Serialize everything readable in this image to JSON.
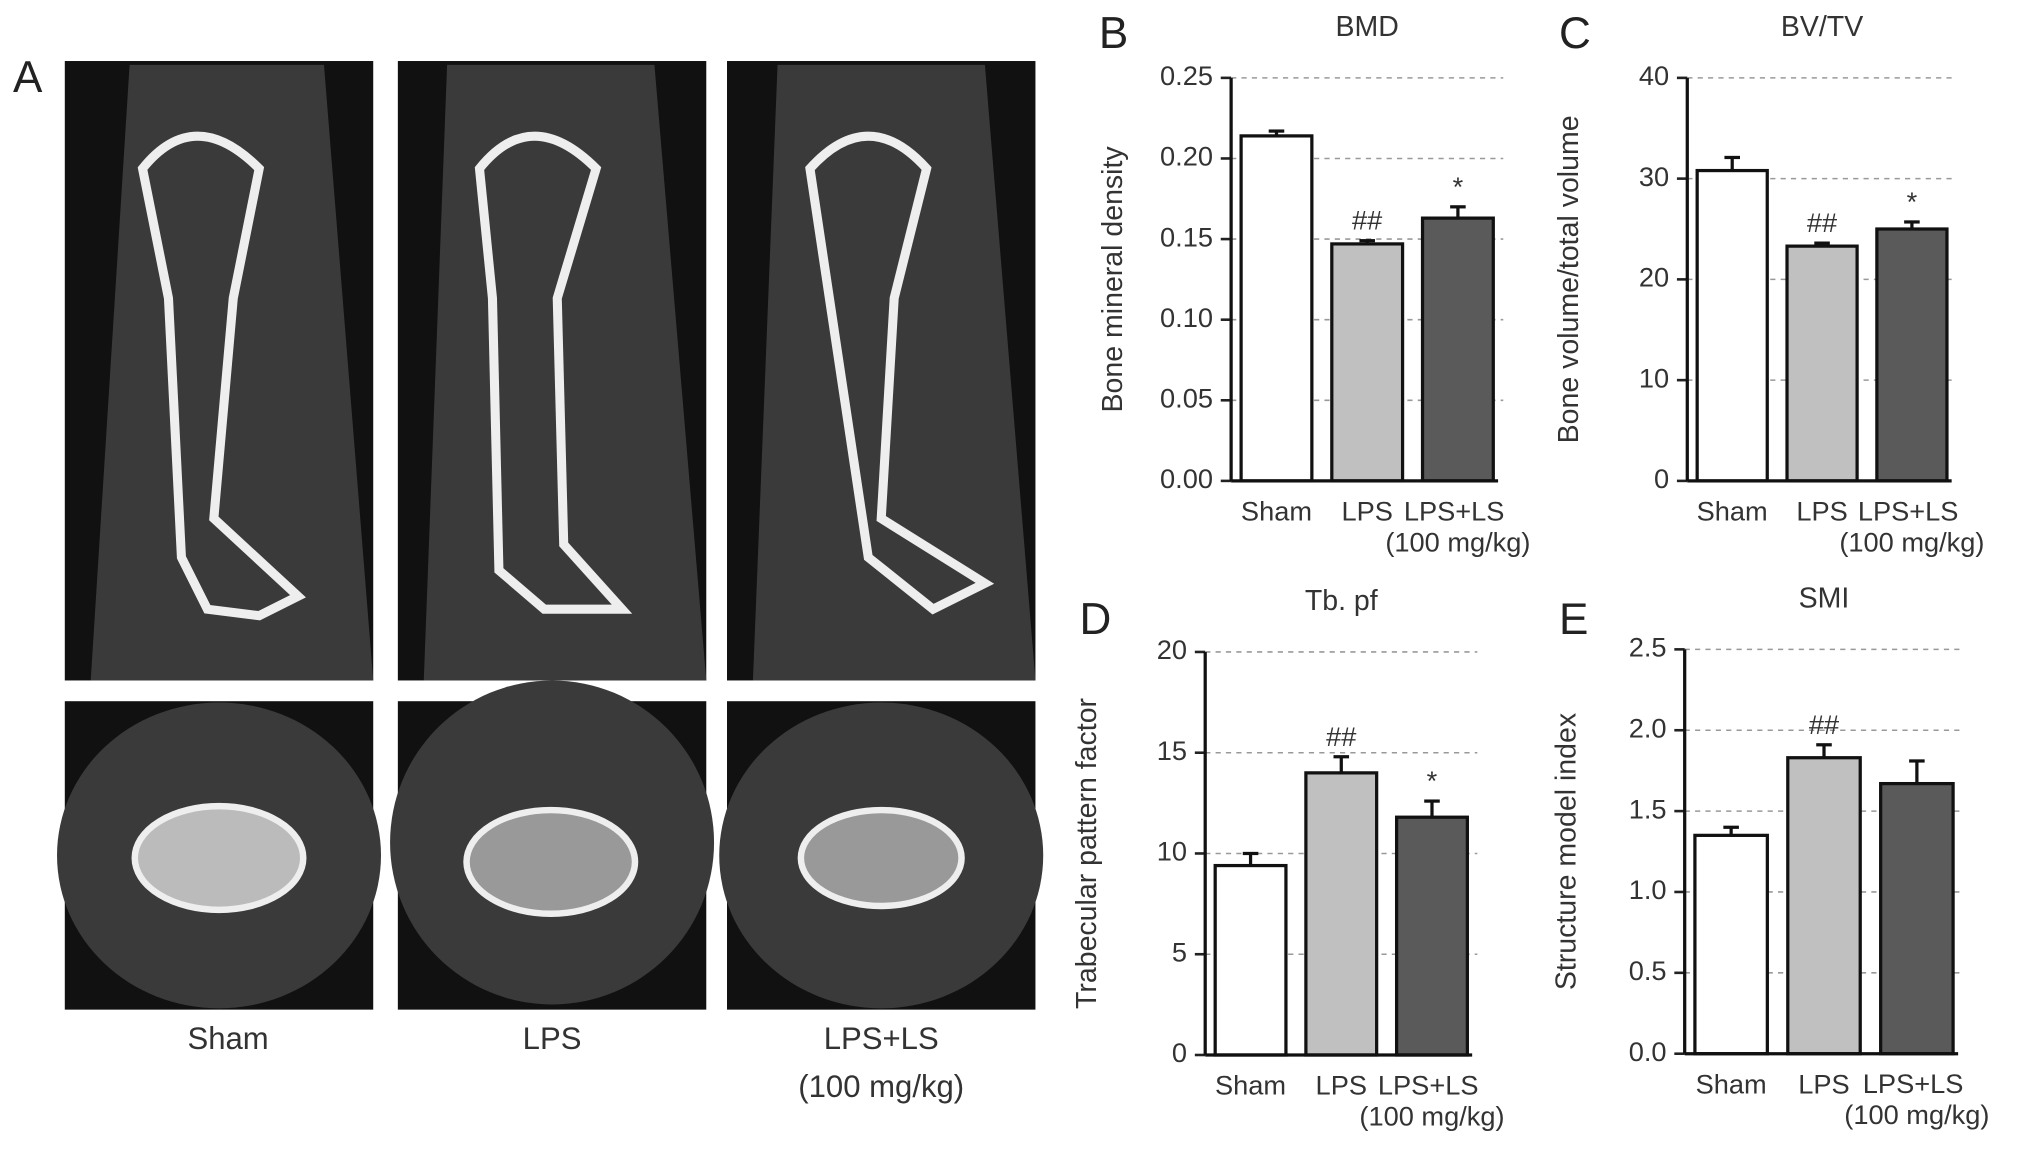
{
  "panel_a": {
    "label": "A",
    "captions": [
      "Sham",
      "LPS",
      "LPS+LS"
    ],
    "caption_note": "(100 mg/kg)"
  },
  "chart_data": [
    {
      "type": "bar",
      "panel": "B",
      "title": "BMD",
      "ylabel": "Bone mineral density",
      "categories": [
        "Sham",
        "LPS",
        "LPS+LS (100 mg/kg)"
      ],
      "values": [
        0.214,
        0.147,
        0.163
      ],
      "errors": [
        0.003,
        0.002,
        0.007
      ],
      "annotations": [
        null,
        "##",
        "*"
      ],
      "colors": [
        "#ffffff",
        "#c0c0c0",
        "#5a5a5a"
      ],
      "ylim": [
        0,
        0.25
      ],
      "yticks": [
        {
          "value": 0,
          "label": "0.00"
        },
        0.05,
        {
          "value": 0.1,
          "label": "0.10"
        },
        0.15,
        {
          "value": 0.2,
          "label": "0.20"
        },
        0.25
      ],
      "grid": true
    },
    {
      "type": "bar",
      "panel": "C",
      "title": "BV/TV",
      "ylabel": "Bone volume/total volume",
      "categories": [
        "Sham",
        "LPS",
        "LPS+LS (100 mg/kg)"
      ],
      "values": [
        30.8,
        23.3,
        25.0
      ],
      "errors": [
        1.3,
        0.3,
        0.7
      ],
      "annotations": [
        null,
        "##",
        "*"
      ],
      "colors": [
        "#ffffff",
        "#c0c0c0",
        "#5a5a5a"
      ],
      "ylim": [
        0,
        40
      ],
      "yticks": [
        0,
        10,
        20,
        30,
        40
      ],
      "grid": true
    },
    {
      "type": "bar",
      "panel": "D",
      "title": "Tb. pf",
      "ylabel": "Trabecular pattern factor",
      "categories": [
        "Sham",
        "LPS",
        "LPS+LS (100 mg/kg)"
      ],
      "values": [
        9.4,
        14.0,
        11.8
      ],
      "errors": [
        0.6,
        0.8,
        0.8
      ],
      "annotations": [
        null,
        "##",
        "*"
      ],
      "colors": [
        "#ffffff",
        "#c0c0c0",
        "#5a5a5a"
      ],
      "ylim": [
        0,
        20
      ],
      "yticks": [
        0,
        5,
        10,
        15,
        20
      ],
      "grid": true
    },
    {
      "type": "bar",
      "panel": "E",
      "title": "SMI",
      "ylabel": "Structure model index",
      "categories": [
        "Sham",
        "LPS",
        "LPS+LS (100 mg/kg)"
      ],
      "values": [
        1.35,
        1.83,
        1.67
      ],
      "errors": [
        0.05,
        0.08,
        0.14
      ],
      "annotations": [
        null,
        "##",
        null
      ],
      "colors": [
        "#ffffff",
        "#c0c0c0",
        "#5a5a5a"
      ],
      "ylim": [
        0,
        2.5
      ],
      "yticks": [
        {
          "value": 0,
          "label": "0.0"
        },
        0.5,
        {
          "value": 1,
          "label": "1.0"
        },
        1.5,
        {
          "value": 2,
          "label": "2.0"
        },
        2.5
      ],
      "grid": true
    }
  ]
}
